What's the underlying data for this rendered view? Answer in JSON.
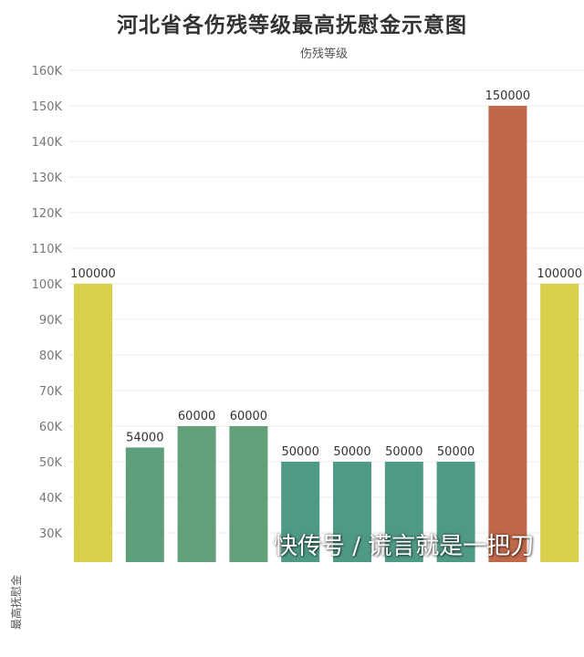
{
  "chart_data": {
    "type": "bar",
    "title": "河北省各伤残等级最高抚慰金示意图",
    "column_header": "伤残等级",
    "ylabel": "最高抚慰金",
    "xlabel": "",
    "ylim": [
      25000,
      165000
    ],
    "yticks": [
      30000,
      40000,
      50000,
      60000,
      70000,
      80000,
      90000,
      100000,
      110000,
      120000,
      130000,
      140000,
      150000,
      160000
    ],
    "ytick_labels": [
      "30K",
      "40K",
      "50K",
      "60K",
      "70K",
      "80K",
      "90K",
      "100K",
      "110K",
      "120K",
      "130K",
      "140K",
      "150K",
      "160K"
    ],
    "grid": "horizontal",
    "values": [
      100000,
      54000,
      60000,
      60000,
      50000,
      50000,
      50000,
      50000,
      150000,
      100000
    ],
    "labels": [
      "100000",
      "54000",
      "60000",
      "60000",
      "50000",
      "50000",
      "50000",
      "50000",
      "150000",
      "100000"
    ],
    "colors": [
      "#d8cf4a",
      "#5f9e7a",
      "#63a07a",
      "#63a07a",
      "#4f9a86",
      "#4f9a86",
      "#4f9a86",
      "#4f9a86",
      "#c0694a",
      "#d8cf4a"
    ]
  },
  "watermark": "快传号 / 谎言就是一把刀"
}
